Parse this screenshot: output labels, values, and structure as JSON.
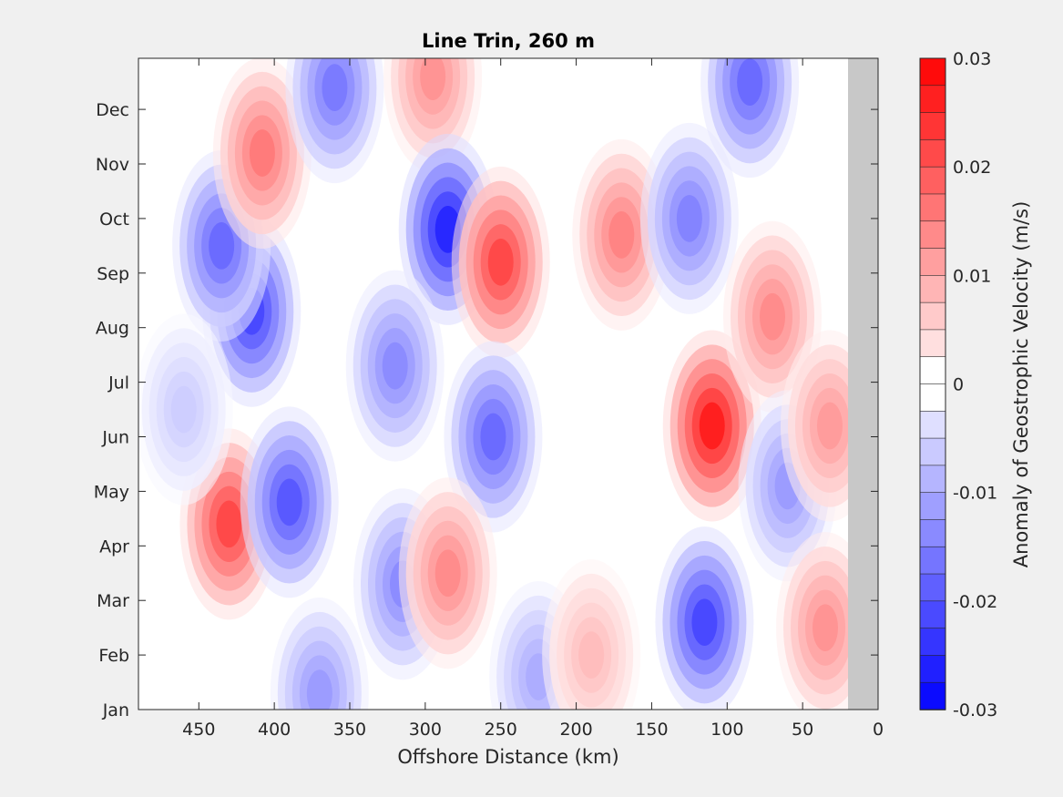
{
  "chart_data": {
    "type": "heatmap",
    "title": "Line Trin, 260 m",
    "xlabel": "Offshore Distance (km)",
    "ylabel": "",
    "x_axis_reversed": true,
    "xlim": [
      490,
      0
    ],
    "x_ticks": [
      450,
      400,
      350,
      300,
      250,
      200,
      150,
      100,
      50,
      0
    ],
    "y_ticks": [
      "Jan",
      "Feb",
      "Mar",
      "Apr",
      "May",
      "Jun",
      "Jul",
      "Aug",
      "Sep",
      "Oct",
      "Nov",
      "Dec"
    ],
    "no_data_region_km": [
      0,
      20
    ],
    "zero_contour": true,
    "colorbar": {
      "label": "Anomaly of Geostrophic Velocity (m/s)",
      "min": -0.03,
      "max": 0.03,
      "levels": 24,
      "ticks": [
        0.03,
        0.02,
        0.01,
        0,
        -0.01,
        -0.02,
        -0.03
      ],
      "tick_labels": [
        "0.03",
        "0.02",
        "0.01",
        "0",
        "-0.01",
        "-0.02",
        "-0.03"
      ],
      "colormap": "blue-white-red",
      "negative_color": "#0000ff",
      "positive_color": "#ff0000",
      "zero_color": "#ffffff"
    },
    "features": [
      {
        "x": 430,
        "month": 3.4,
        "value": 0.022
      },
      {
        "x": 415,
        "month": 7.3,
        "value": -0.022
      },
      {
        "x": 435,
        "month": 8.5,
        "value": -0.018
      },
      {
        "x": 408,
        "month": 10.2,
        "value": 0.016
      },
      {
        "x": 390,
        "month": 3.8,
        "value": -0.02
      },
      {
        "x": 370,
        "month": 0.3,
        "value": -0.012
      },
      {
        "x": 360,
        "month": 11.4,
        "value": -0.016
      },
      {
        "x": 295,
        "month": 11.6,
        "value": 0.013
      },
      {
        "x": 285,
        "month": 8.8,
        "value": -0.026
      },
      {
        "x": 250,
        "month": 8.2,
        "value": 0.022
      },
      {
        "x": 255,
        "month": 5.0,
        "value": -0.018
      },
      {
        "x": 315,
        "month": 2.3,
        "value": -0.014
      },
      {
        "x": 285,
        "month": 2.5,
        "value": 0.014
      },
      {
        "x": 320,
        "month": 6.3,
        "value": -0.014
      },
      {
        "x": 170,
        "month": 8.7,
        "value": 0.015
      },
      {
        "x": 110,
        "month": 5.2,
        "value": 0.027
      },
      {
        "x": 115,
        "month": 1.6,
        "value": -0.022
      },
      {
        "x": 125,
        "month": 9.0,
        "value": -0.015
      },
      {
        "x": 85,
        "month": 11.5,
        "value": -0.018
      },
      {
        "x": 70,
        "month": 7.2,
        "value": 0.014
      },
      {
        "x": 60,
        "month": 4.1,
        "value": -0.012
      },
      {
        "x": 35,
        "month": 1.5,
        "value": 0.013
      },
      {
        "x": 32,
        "month": 5.2,
        "value": 0.012
      },
      {
        "x": 225,
        "month": 0.6,
        "value": -0.01
      },
      {
        "x": 460,
        "month": 5.5,
        "value": -0.006
      },
      {
        "x": 190,
        "month": 1.0,
        "value": 0.008
      }
    ]
  }
}
